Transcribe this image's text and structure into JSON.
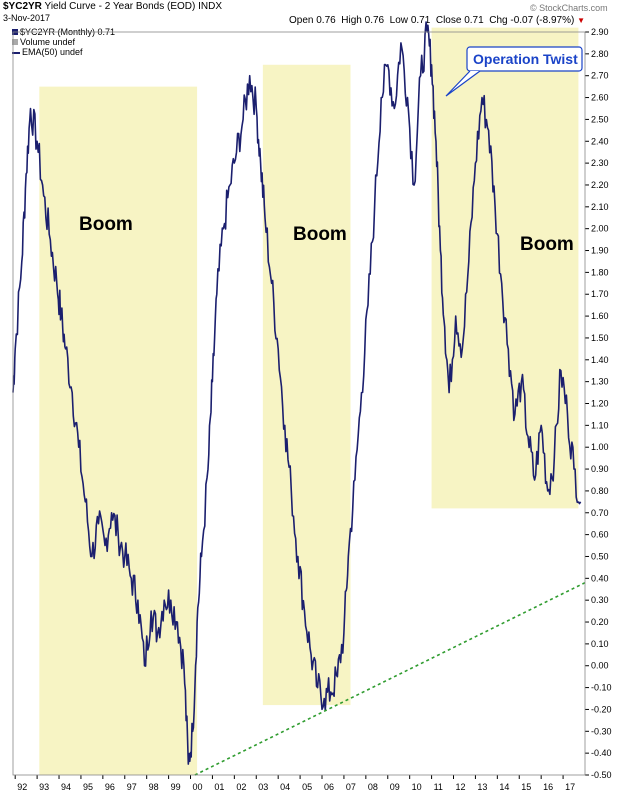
{
  "header": {
    "symbol": "$YC2YR",
    "name": "Yield Curve - 2 Year Bonds (EOD)",
    "exchange": "INDX",
    "date": "3-Nov-2017",
    "open_label": "Open",
    "open": "0.76",
    "high_label": "High",
    "high": "0.76",
    "low_label": "Low",
    "low": "0.71",
    "close_label": "Close",
    "close": "0.71",
    "chg_label": "Chg",
    "chg": "-0.07 (-8.97%)",
    "watermark": "© StockCharts.com"
  },
  "legend": {
    "series": "$YC2YR (Monthly) 0.71",
    "volume": "Volume undef",
    "ema": "EMA(50) undef"
  },
  "colors": {
    "line": "#1b1f6e",
    "zone": "#f7f4c4",
    "trend": "#2f9c2f",
    "callout_text": "#1a43c8",
    "grid": "#dddddd",
    "chg_down": "#cc0000"
  },
  "annotations": {
    "boom1": "Boom",
    "boom2": "Boom",
    "boom3": "Boom",
    "operation_twist": "Operation Twist"
  },
  "chart_data": {
    "type": "line",
    "ylim": [
      -0.5,
      2.9
    ],
    "y_ticks": [
      "2.90",
      "2.80",
      "2.70",
      "2.60",
      "2.50",
      "2.40",
      "2.30",
      "2.20",
      "2.10",
      "2.00",
      "1.90",
      "1.80",
      "1.70",
      "1.60",
      "1.50",
      "1.40",
      "1.30",
      "1.20",
      "1.10",
      "1.00",
      "0.90",
      "0.80",
      "0.70",
      "0.60",
      "0.50",
      "0.40",
      "0.30",
      "0.20",
      "0.10",
      "0.00",
      "-0.10",
      "-0.20",
      "-0.30",
      "-0.40",
      "-0.50"
    ],
    "x_ticks": [
      "92",
      "93",
      "94",
      "95",
      "96",
      "97",
      "98",
      "99",
      "00",
      "01",
      "02",
      "03",
      "04",
      "05",
      "06",
      "07",
      "08",
      "09",
      "10",
      "11",
      "12",
      "13",
      "14",
      "15",
      "16",
      "17"
    ],
    "xlim": [
      1991.9,
      2018.0
    ],
    "series": [
      {
        "x": [
          1991.9,
          1992.0,
          1992.3,
          1992.5,
          1992.7,
          1993.0,
          1993.3,
          1993.6,
          1993.9,
          1994.1,
          1994.3,
          1994.6,
          1994.9,
          1995.2,
          1995.5,
          1995.8,
          1996.1,
          1996.4,
          1996.7,
          1997.0,
          1997.3,
          1997.6,
          1997.9,
          1998.2,
          1998.5,
          1998.8,
          1999.1,
          1999.4,
          1999.7,
          1999.9,
          2000.1,
          2000.3,
          2000.5,
          2000.8,
          2001.0,
          2001.2,
          2001.5,
          2001.8,
          2002.1,
          2002.4,
          2002.7,
          2003.0,
          2003.2,
          2003.4,
          2003.7,
          2004.0,
          2004.3,
          2004.6,
          2004.9,
          2005.2,
          2005.5,
          2005.8,
          2006.1,
          2006.4,
          2006.7,
          2007.0,
          2007.2,
          2007.5,
          2007.8,
          2008.1,
          2008.4,
          2008.7,
          2009.0,
          2009.3,
          2009.6,
          2009.9,
          2010.2,
          2010.5,
          2010.8,
          2011.0,
          2011.2,
          2011.4,
          2011.6,
          2011.8,
          2012.1,
          2012.4,
          2012.7,
          2013.0,
          2013.3,
          2013.6,
          2013.9,
          2014.2,
          2014.5,
          2014.8,
          2015.1,
          2015.4,
          2015.7,
          2016.0,
          2016.3,
          2016.6,
          2016.9,
          2017.2,
          2017.5,
          2017.8
        ],
        "y": [
          1.25,
          1.45,
          1.85,
          2.25,
          2.55,
          2.4,
          2.15,
          1.95,
          1.75,
          1.6,
          1.45,
          1.25,
          1.0,
          0.75,
          0.5,
          0.65,
          0.55,
          0.7,
          0.6,
          0.5,
          0.4,
          0.3,
          0.0,
          0.25,
          0.15,
          0.3,
          0.3,
          0.2,
          0.0,
          -0.45,
          -0.3,
          0.2,
          0.5,
          0.9,
          1.3,
          1.7,
          2.0,
          2.2,
          2.35,
          2.5,
          2.7,
          2.55,
          2.3,
          2.05,
          1.75,
          1.45,
          1.1,
          0.8,
          0.5,
          0.25,
          0.05,
          -0.1,
          -0.15,
          -0.12,
          -0.05,
          0.15,
          0.5,
          0.85,
          1.25,
          1.65,
          2.1,
          2.6,
          2.75,
          2.55,
          2.85,
          2.6,
          2.2,
          2.7,
          2.9,
          2.75,
          2.4,
          1.9,
          1.55,
          1.25,
          1.6,
          1.45,
          1.85,
          2.3,
          2.6,
          2.45,
          2.1,
          1.75,
          1.45,
          1.15,
          1.3,
          1.05,
          0.85,
          1.1,
          0.8,
          0.95,
          1.35,
          1.15,
          0.9,
          0.75
        ]
      }
    ],
    "zones": [
      {
        "x0": 1993.1,
        "x1": 2000.3,
        "y0": -0.5,
        "y1": 2.65,
        "label": "Boom"
      },
      {
        "x0": 2003.3,
        "x1": 2007.3,
        "y0": -0.18,
        "y1": 2.75,
        "label": "Boom"
      },
      {
        "x0": 2011.0,
        "x1": 2017.7,
        "y0": 0.72,
        "y1": 2.92,
        "label": "Boom"
      }
    ],
    "trendline": {
      "x0": 2000.2,
      "y0": -0.5,
      "x1": 2018.0,
      "y1": 0.38
    }
  }
}
